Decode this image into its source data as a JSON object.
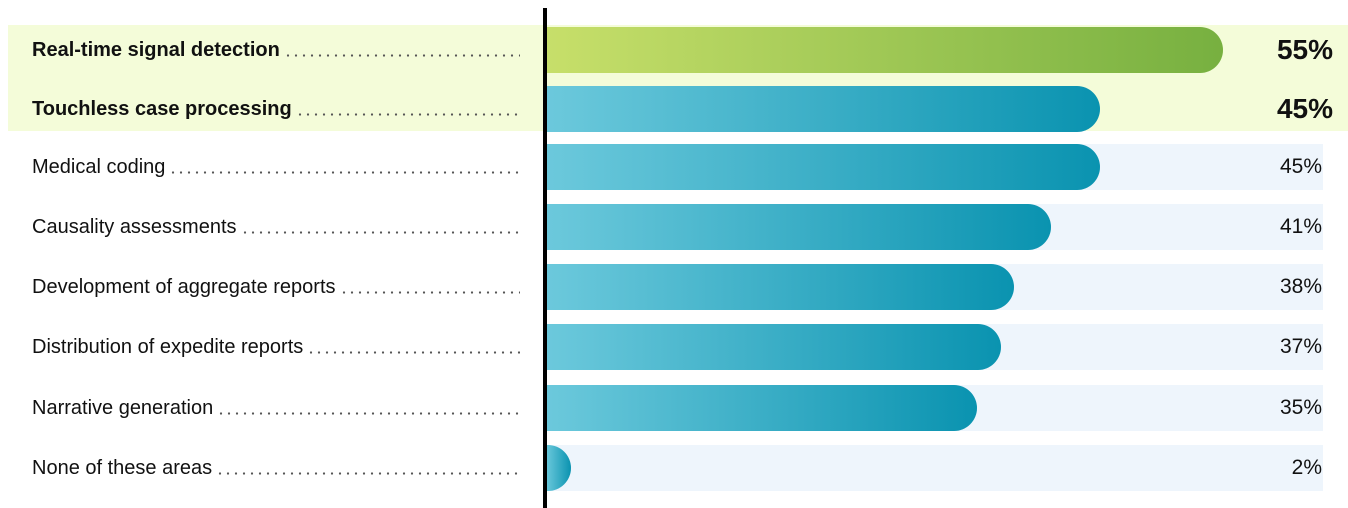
{
  "chart_data": {
    "type": "bar",
    "orientation": "horizontal",
    "title": "",
    "xlabel": "",
    "ylabel": "",
    "xlim": [
      0,
      55
    ],
    "grid": false,
    "categories": [
      "Real-time signal detection",
      "Touchless case processing",
      "Medical coding",
      "Causality assessments",
      "Development of aggregate reports",
      "Distribution of expedite reports",
      "Narrative generation",
      "None of these areas"
    ],
    "values": [
      55,
      45,
      45,
      41,
      38,
      37,
      35,
      2
    ],
    "value_labels": [
      "55%",
      "45%",
      "45%",
      "41%",
      "38%",
      "37%",
      "35%",
      "2%"
    ],
    "highlighted": [
      true,
      true,
      false,
      false,
      false,
      false,
      false,
      false
    ],
    "colors": {
      "accent_bar_start": "#c7df6a",
      "accent_bar_end": "#77b040",
      "bar_start": "#6cc9dc",
      "bar_end": "#0a93b0",
      "highlight_band": "#f4fcd9",
      "track": "#eef5fc",
      "axis": "#000000"
    }
  }
}
